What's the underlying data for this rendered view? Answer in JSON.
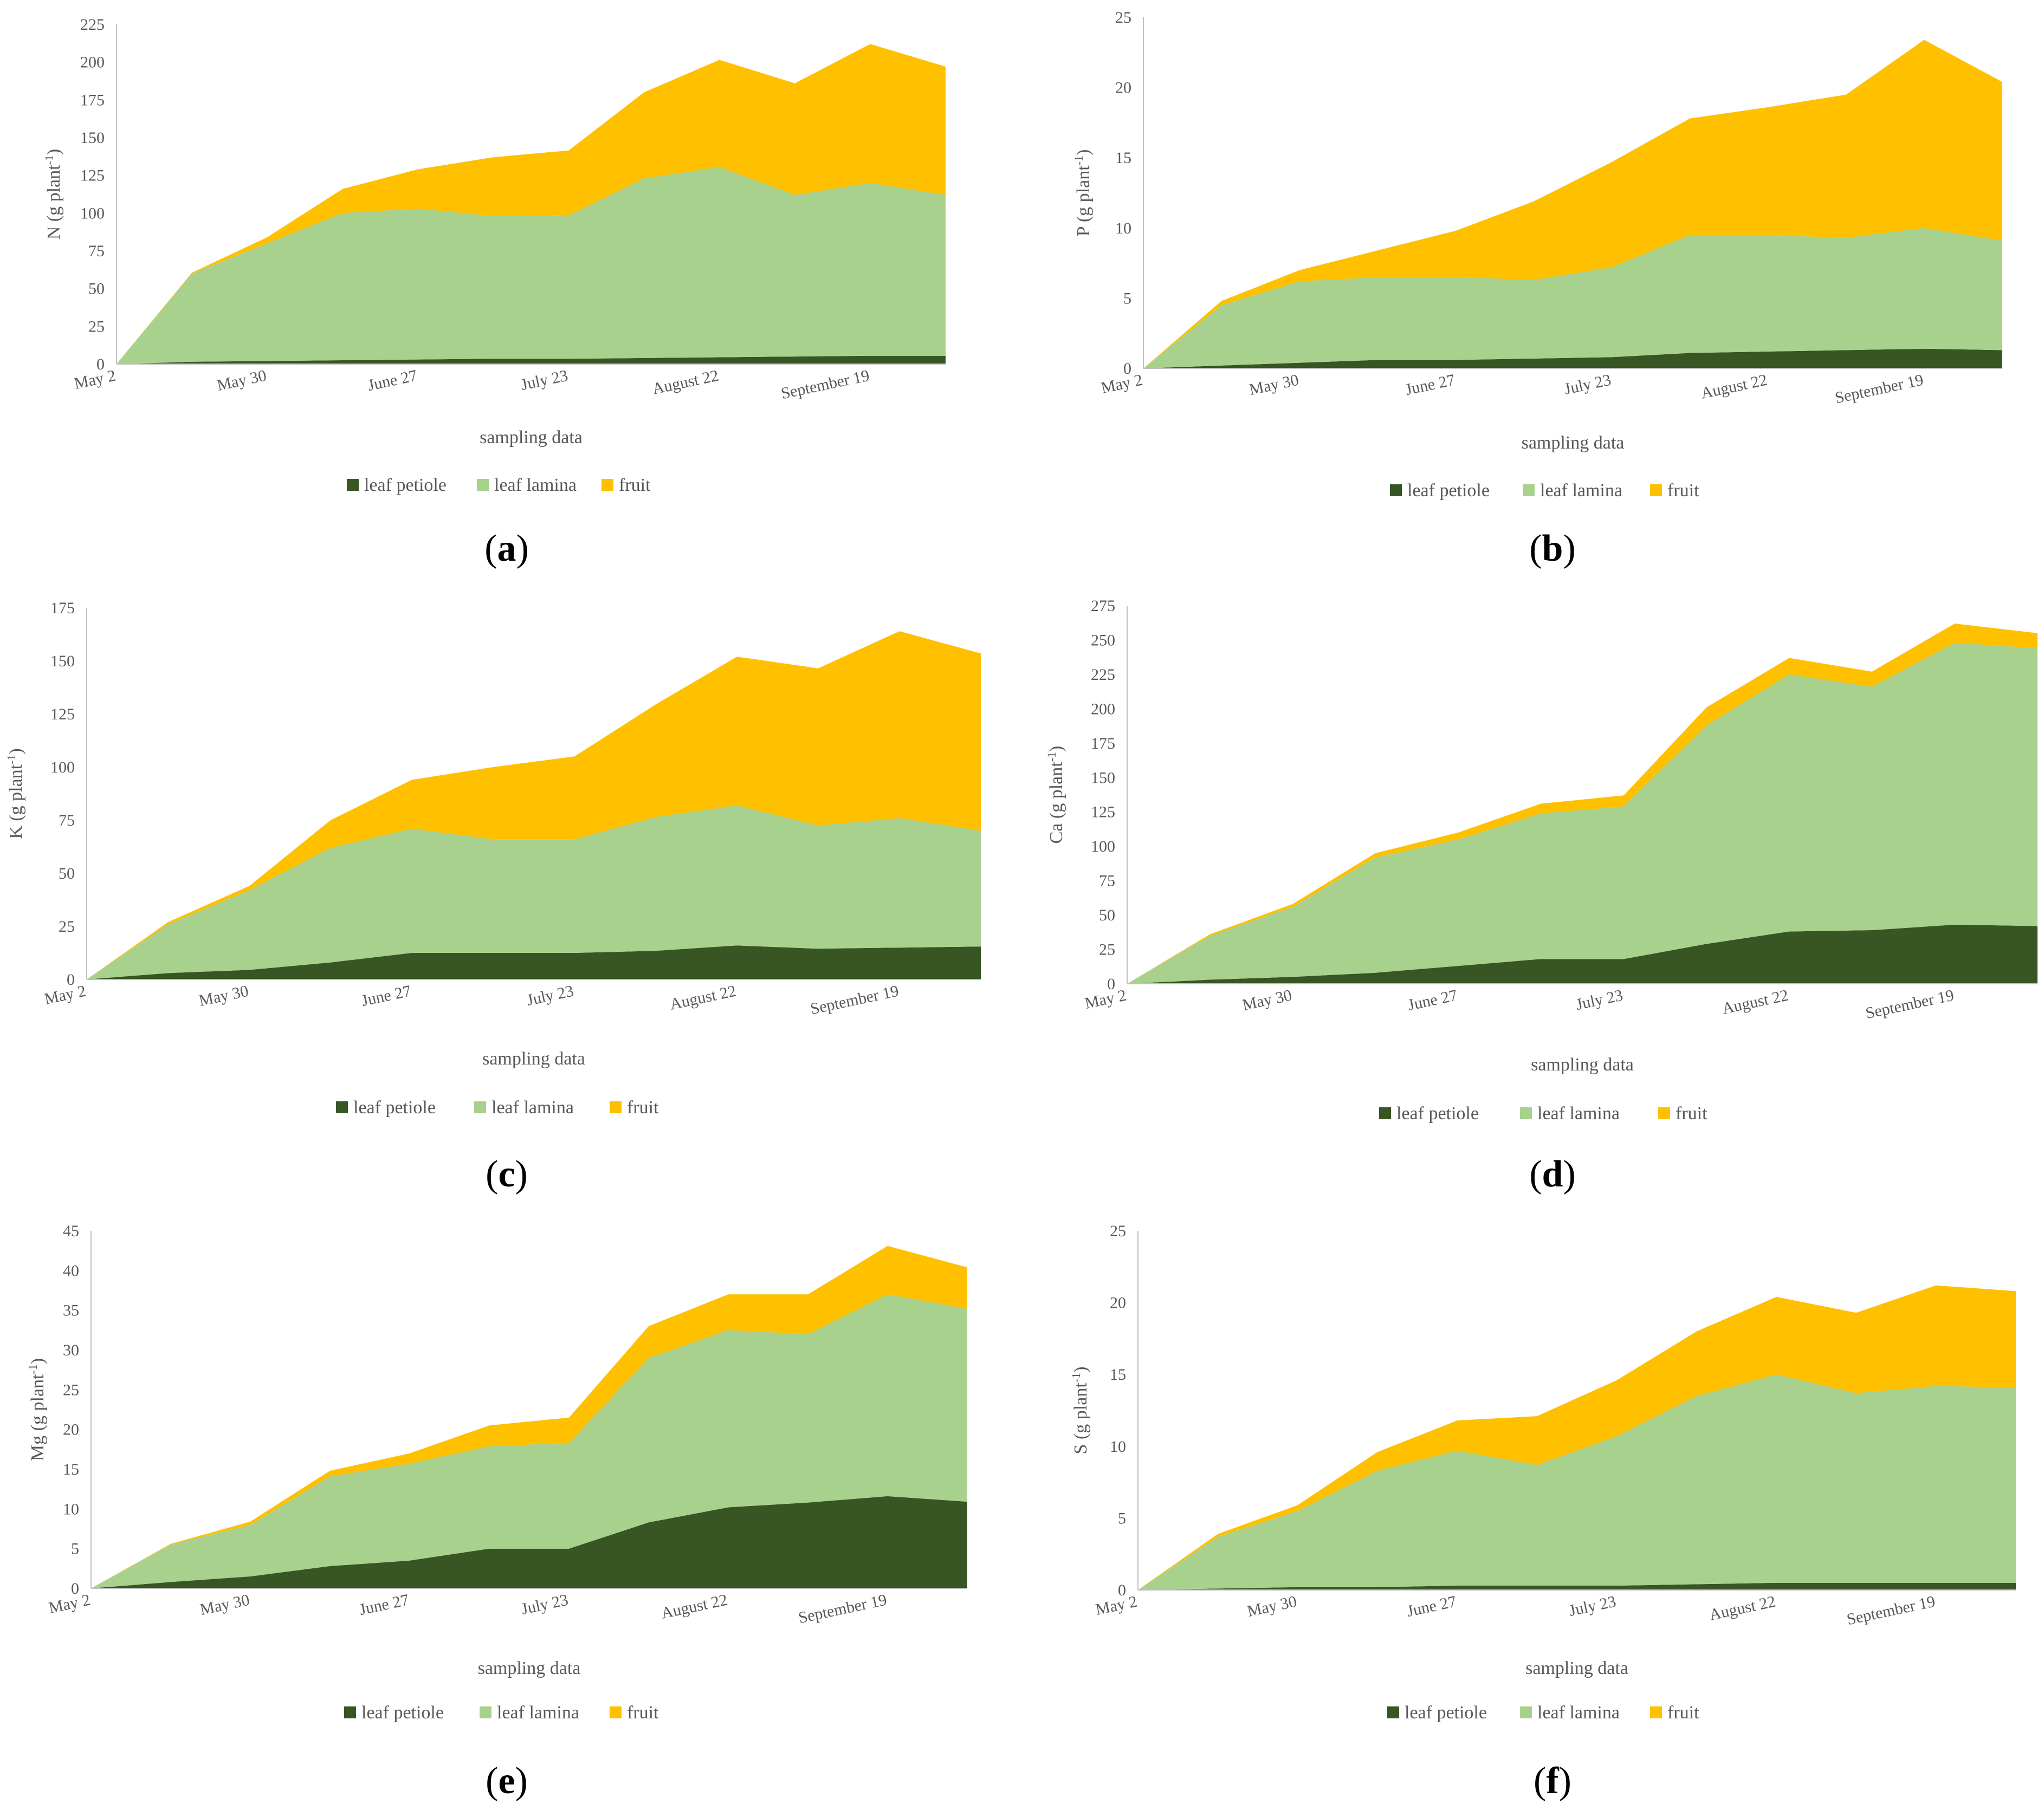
{
  "colors": {
    "petiole": "#375623",
    "lamina": "#a9d18e",
    "fruit": "#ffc000"
  },
  "chart_data": [
    {
      "type": "area",
      "id": "a",
      "panel_label": "a",
      "ylabel_main": "N (g plant",
      "ylabel_sup": "-1",
      "ylabel_close": ")",
      "xlabel": "sampling data",
      "ylim": [
        0,
        225
      ],
      "yticks": [
        0,
        25,
        50,
        75,
        100,
        125,
        150,
        175,
        200,
        225
      ],
      "x_tick_labels": [
        "May 2",
        "May 30",
        "June 27",
        "July 23",
        "August 22",
        "September 19"
      ],
      "x_tick_index": [
        0,
        2,
        4,
        6,
        8,
        10
      ],
      "n_points": 12,
      "stacked": true,
      "series": [
        {
          "name": "leaf petiole",
          "color": "#375623",
          "values": [
            0,
            1.5,
            2,
            2.5,
            3,
            3.5,
            3.5,
            4,
            4.5,
            5,
            5.5,
            5.5
          ]
        },
        {
          "name": "leaf lamina",
          "color": "#a9d18e",
          "values": [
            0,
            58.5,
            78,
            97.5,
            100,
            94.5,
            95,
            119,
            126,
            107,
            114.5,
            106.5
          ]
        },
        {
          "name": "fruit",
          "color": "#ffc000",
          "values": [
            0,
            0.5,
            4,
            16,
            26,
            39,
            43,
            57,
            71,
            74,
            92,
            85
          ]
        }
      ]
    },
    {
      "type": "area",
      "id": "b",
      "panel_label": "b",
      "ylabel_main": "P (g plant",
      "ylabel_sup": "-1",
      "ylabel_close": ")",
      "xlabel": "sampling data",
      "ylim": [
        0,
        25
      ],
      "yticks": [
        0,
        5,
        10,
        15,
        20,
        25
      ],
      "x_tick_labels": [
        "May 2",
        "May 30",
        "June 27",
        "July 23",
        "August 22",
        "September 19"
      ],
      "x_tick_index": [
        0,
        2,
        4,
        6,
        8,
        10
      ],
      "n_points": 12,
      "stacked": true,
      "series": [
        {
          "name": "leaf petiole",
          "color": "#375623",
          "values": [
            0,
            0.2,
            0.4,
            0.6,
            0.6,
            0.7,
            0.8,
            1.1,
            1.2,
            1.3,
            1.4,
            1.3
          ]
        },
        {
          "name": "leaf lamina",
          "color": "#a9d18e",
          "values": [
            0,
            4.3,
            5.8,
            5.9,
            5.9,
            5.6,
            6.4,
            8.4,
            8.3,
            8.0,
            8.6,
            7.8
          ]
        },
        {
          "name": "fruit",
          "color": "#ffc000",
          "values": [
            0,
            0.3,
            0.8,
            1.9,
            3.3,
            5.6,
            7.5,
            8.3,
            9.1,
            10.2,
            13.4,
            11.3
          ]
        }
      ]
    },
    {
      "type": "area",
      "id": "c",
      "panel_label": "c",
      "ylabel_main": "K (g plant",
      "ylabel_sup": "-1",
      "ylabel_close": ")",
      "xlabel": "sampling data",
      "ylim": [
        0,
        175
      ],
      "yticks": [
        0,
        25,
        50,
        75,
        100,
        125,
        150,
        175
      ],
      "x_tick_labels": [
        "May 2",
        "May 30",
        "June 27",
        "July 23",
        "August 22",
        "September 19"
      ],
      "x_tick_index": [
        0,
        2,
        4,
        6,
        8,
        10
      ],
      "n_points": 12,
      "stacked": true,
      "series": [
        {
          "name": "leaf petiole",
          "color": "#375623",
          "values": [
            0,
            3,
            4.5,
            8,
            12.5,
            12.5,
            12.5,
            13.5,
            16,
            14.5,
            15,
            15.5
          ]
        },
        {
          "name": "leaf lamina",
          "color": "#a9d18e",
          "values": [
            0,
            23,
            37.5,
            54,
            58.5,
            53.5,
            53.5,
            63,
            66,
            58,
            61,
            54.5
          ]
        },
        {
          "name": "fruit",
          "color": "#ffc000",
          "values": [
            0,
            1,
            2,
            13,
            23,
            34,
            39,
            53,
            70,
            74,
            88,
            83.5
          ]
        }
      ]
    },
    {
      "type": "area",
      "id": "d",
      "panel_label": "d",
      "ylabel_main": "Ca (g plant",
      "ylabel_sup": "-1",
      "ylabel_close": ")",
      "xlabel": "sampling data",
      "ylim": [
        0,
        275
      ],
      "yticks": [
        0,
        25,
        50,
        75,
        100,
        125,
        150,
        175,
        200,
        225,
        250,
        275
      ],
      "x_tick_labels": [
        "May 2",
        "May 30",
        "June 27",
        "July 23",
        "August 22",
        "September 19"
      ],
      "x_tick_index": [
        0,
        2,
        4,
        6,
        8,
        10
      ],
      "n_points": 12,
      "stacked": true,
      "series": [
        {
          "name": "leaf petiole",
          "color": "#375623",
          "values": [
            0,
            3,
            5,
            8,
            13,
            18,
            18,
            29,
            38,
            39,
            43,
            42
          ]
        },
        {
          "name": "leaf lamina",
          "color": "#a9d18e",
          "values": [
            0,
            32,
            51,
            84,
            92,
            106,
            111,
            159,
            187,
            177,
            205,
            202
          ]
        },
        {
          "name": "fruit",
          "color": "#ffc000",
          "values": [
            0,
            1,
            2,
            3,
            5,
            7,
            8,
            13,
            12,
            11,
            14,
            11
          ]
        }
      ]
    },
    {
      "type": "area",
      "id": "e",
      "panel_label": "e",
      "ylabel_main": "Mg (g plant",
      "ylabel_sup": "-1",
      "ylabel_close": ")",
      "xlabel": "sampling data",
      "ylim": [
        0,
        45
      ],
      "yticks": [
        0,
        5,
        10,
        15,
        20,
        25,
        30,
        35,
        40,
        45
      ],
      "x_tick_labels": [
        "May 2",
        "May 30",
        "June 27",
        "July 23",
        "August 22",
        "September 19"
      ],
      "x_tick_index": [
        0,
        2,
        4,
        6,
        8,
        10
      ],
      "n_points": 12,
      "stacked": true,
      "series": [
        {
          "name": "leaf petiole",
          "color": "#375623",
          "values": [
            0,
            0.8,
            1.5,
            2.8,
            3.5,
            5.0,
            5.0,
            8.3,
            10.2,
            10.8,
            11.6,
            10.9
          ]
        },
        {
          "name": "leaf lamina",
          "color": "#a9d18e",
          "values": [
            0,
            4.7,
            6.5,
            11.3,
            12.2,
            12.9,
            13.3,
            20.7,
            22.3,
            21.2,
            25.4,
            24.3
          ]
        },
        {
          "name": "fruit",
          "color": "#ffc000",
          "values": [
            0,
            0.1,
            0.4,
            0.7,
            1.3,
            2.6,
            3.2,
            4.0,
            4.5,
            5.0,
            6.1,
            5.2
          ]
        }
      ]
    },
    {
      "type": "area",
      "id": "f",
      "panel_label": "f",
      "ylabel_main": "S (g plant",
      "ylabel_sup": "-1",
      "ylabel_close": ")",
      "xlabel": "sampling data",
      "ylim": [
        0,
        25
      ],
      "yticks": [
        0,
        5,
        10,
        15,
        20,
        25
      ],
      "x_tick_labels": [
        "May 2",
        "May 30",
        "June 27",
        "July 23",
        "August 22",
        "September 19"
      ],
      "x_tick_index": [
        0,
        2,
        4,
        6,
        8,
        10
      ],
      "n_points": 12,
      "stacked": true,
      "series": [
        {
          "name": "leaf petiole",
          "color": "#375623",
          "values": [
            0,
            0.1,
            0.2,
            0.2,
            0.3,
            0.3,
            0.3,
            0.4,
            0.5,
            0.5,
            0.5,
            0.5
          ]
        },
        {
          "name": "leaf lamina",
          "color": "#a9d18e",
          "values": [
            0,
            3.6,
            5.3,
            8.1,
            9.4,
            8.4,
            10.4,
            13.1,
            14.5,
            13.2,
            13.7,
            13.6
          ]
        },
        {
          "name": "fruit",
          "color": "#ffc000",
          "values": [
            0,
            0.2,
            0.4,
            1.3,
            2.1,
            3.4,
            3.9,
            4.5,
            5.4,
            5.6,
            7.0,
            6.7
          ]
        }
      ]
    }
  ]
}
